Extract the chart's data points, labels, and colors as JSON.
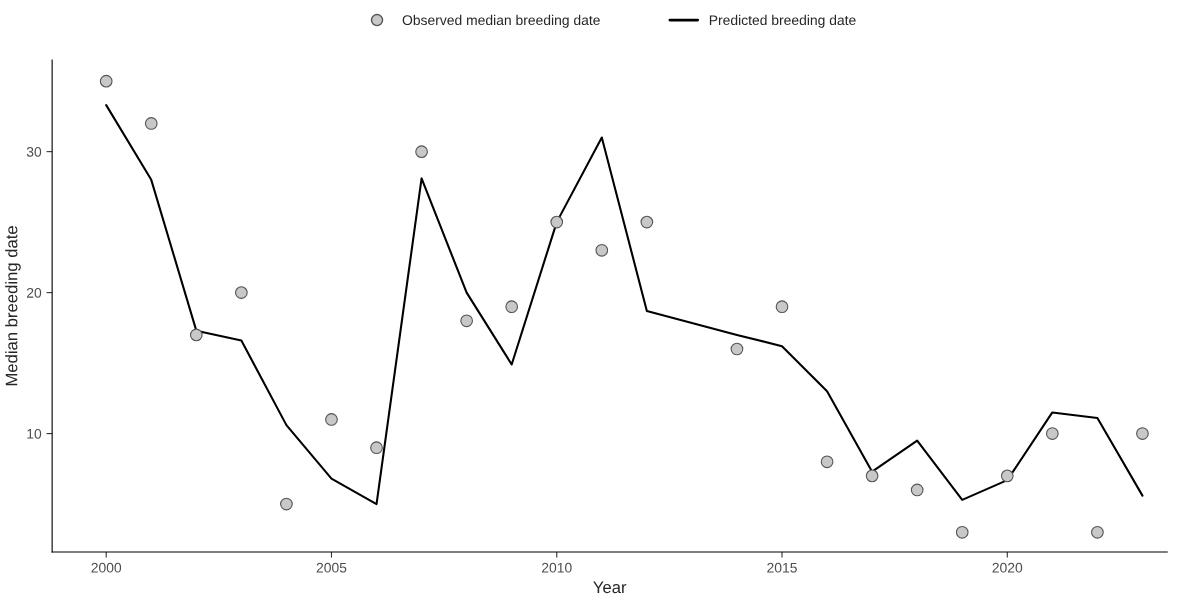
{
  "chart_data": {
    "type": "line",
    "xlabel": "Year",
    "ylabel": "Median breeding date",
    "series": [
      {
        "name": "Observed median breeding date",
        "type": "scatter",
        "color": "#c8c8c8",
        "marker": "circle",
        "x": [
          2000,
          2001,
          2002,
          2003,
          2004,
          2005,
          2006,
          2007,
          2008,
          2009,
          2010,
          2011,
          2012,
          2014,
          2015,
          2016,
          2017,
          2018,
          2019,
          2020,
          2021,
          2022,
          2023
        ],
        "values": [
          35,
          32,
          17,
          20,
          5,
          11,
          9,
          30,
          18,
          19,
          25,
          23,
          25,
          16,
          19,
          8,
          7,
          6,
          3,
          7,
          10,
          3,
          10
        ]
      },
      {
        "name": "Predicted breeding date",
        "color": "#000000",
        "line_style": "solid",
        "x": [
          2000,
          2001,
          2002,
          2003,
          2004,
          2005,
          2006,
          2007,
          2008,
          2009,
          2010,
          2011,
          2012,
          2014,
          2015,
          2016,
          2017,
          2018,
          2019,
          2020,
          2021,
          2022,
          2023
        ],
        "values": [
          33.3,
          28.0,
          17.3,
          16.6,
          10.6,
          6.8,
          5.0,
          28.1,
          20.0,
          14.9,
          25.0,
          31.0,
          18.7,
          17.0,
          16.2,
          13.0,
          7.3,
          9.5,
          5.3,
          6.7,
          11.5,
          11.1,
          5.6
        ]
      }
    ],
    "xlim": [
      1998.8,
      2023.55
    ],
    "ylim": [
      1.6,
      36.5
    ],
    "xticks": [
      2000,
      2005,
      2010,
      2015,
      2020
    ],
    "yticks": [
      10,
      20,
      30
    ],
    "grid": false,
    "legend": "top"
  }
}
